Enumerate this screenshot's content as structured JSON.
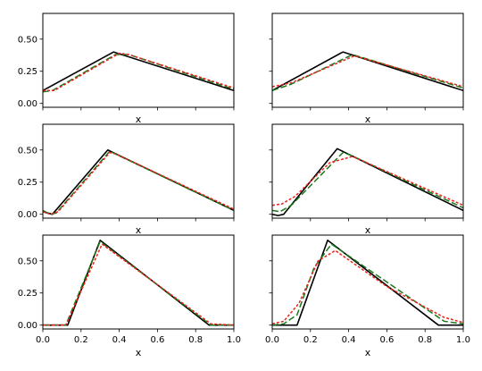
{
  "figure": {
    "background": "#ffffff"
  },
  "styles": {
    "colors": {
      "black": "#000000",
      "green": "#1a7a1a",
      "red": "#e8221c"
    }
  },
  "chart_data": [
    {
      "type": "line",
      "xlabel": "x",
      "ylabel": "",
      "xlim": [
        0,
        1
      ],
      "ylim": [
        -0.03,
        0.7
      ],
      "xticks": [],
      "yticks": [
        "0.00",
        "0.25",
        "0.50"
      ],
      "series": [
        {
          "color": "#000000",
          "style": "solid",
          "x": [
            0,
            0.37,
            1.0
          ],
          "y": [
            0.1,
            0.4,
            0.1
          ]
        },
        {
          "color": "#1a7a1a",
          "style": "dashed",
          "x": [
            0,
            0.05,
            0.38,
            0.45,
            1.0
          ],
          "y": [
            0.09,
            0.1,
            0.38,
            0.38,
            0.11
          ]
        },
        {
          "color": "#e8221c",
          "style": "dotted",
          "x": [
            0,
            0.06,
            0.4,
            0.45,
            1.0
          ],
          "y": [
            0.1,
            0.1,
            0.39,
            0.38,
            0.12
          ]
        }
      ]
    },
    {
      "type": "line",
      "xlabel": "x",
      "ylabel": "",
      "xlim": [
        0,
        1
      ],
      "ylim": [
        -0.03,
        0.7
      ],
      "xticks": [],
      "yticks": [],
      "series": [
        {
          "color": "#000000",
          "style": "solid",
          "x": [
            0,
            0.37,
            1.0
          ],
          "y": [
            0.1,
            0.4,
            0.1
          ]
        },
        {
          "color": "#1a7a1a",
          "style": "dashed",
          "x": [
            0,
            0.1,
            0.42,
            1.0
          ],
          "y": [
            0.1,
            0.15,
            0.38,
            0.12
          ]
        },
        {
          "color": "#e8221c",
          "style": "dotted",
          "x": [
            0,
            0.1,
            0.43,
            1.0
          ],
          "y": [
            0.13,
            0.16,
            0.37,
            0.13
          ]
        }
      ]
    },
    {
      "type": "line",
      "xlabel": "x",
      "ylabel": "",
      "xlim": [
        0,
        1
      ],
      "ylim": [
        -0.03,
        0.7
      ],
      "xticks": [],
      "yticks": [
        "0.00",
        "0.25",
        "0.50"
      ],
      "series": [
        {
          "color": "#000000",
          "style": "solid",
          "x": [
            0,
            0.05,
            0.34,
            1.0
          ],
          "y": [
            0.02,
            0.0,
            0.5,
            0.03
          ]
        },
        {
          "color": "#1a7a1a",
          "style": "dashed",
          "x": [
            0,
            0.04,
            0.07,
            0.35,
            1.0
          ],
          "y": [
            0.03,
            0.0,
            0.01,
            0.49,
            0.03
          ]
        },
        {
          "color": "#e8221c",
          "style": "dotted",
          "x": [
            0,
            0.04,
            0.08,
            0.35,
            0.38,
            1.0
          ],
          "y": [
            0.02,
            0.0,
            0.02,
            0.48,
            0.47,
            0.04
          ]
        }
      ]
    },
    {
      "type": "line",
      "xlabel": "x",
      "ylabel": "",
      "xlim": [
        0,
        1
      ],
      "ylim": [
        -0.03,
        0.7
      ],
      "xticks": [],
      "yticks": [],
      "series": [
        {
          "color": "#000000",
          "style": "solid",
          "x": [
            0,
            0.03,
            0.06,
            0.34,
            1.0
          ],
          "y": [
            0.0,
            -0.01,
            0.0,
            0.51,
            0.03
          ]
        },
        {
          "color": "#1a7a1a",
          "style": "dashed",
          "x": [
            0,
            0.04,
            0.1,
            0.37,
            0.41,
            1.0
          ],
          "y": [
            0.03,
            0.02,
            0.07,
            0.48,
            0.46,
            0.05
          ]
        },
        {
          "color": "#e8221c",
          "style": "dotted",
          "x": [
            0,
            0.05,
            0.12,
            0.3,
            0.42,
            1.0
          ],
          "y": [
            0.07,
            0.08,
            0.14,
            0.4,
            0.45,
            0.07
          ]
        }
      ]
    },
    {
      "type": "line",
      "xlabel": "x",
      "ylabel": "",
      "xlim": [
        0,
        1
      ],
      "ylim": [
        -0.03,
        0.7
      ],
      "xticks": [
        "0.0",
        "0.2",
        "0.4",
        "0.6",
        "0.8",
        "1.0"
      ],
      "yticks": [
        "0.00",
        "0.25",
        "0.50"
      ],
      "series": [
        {
          "color": "#000000",
          "style": "solid",
          "x": [
            0,
            0.13,
            0.3,
            0.87,
            1.0
          ],
          "y": [
            0.0,
            0.0,
            0.66,
            0.0,
            0.0
          ]
        },
        {
          "color": "#1a7a1a",
          "style": "dashed",
          "x": [
            0,
            0.12,
            0.3,
            0.88,
            1.0
          ],
          "y": [
            0.0,
            0.0,
            0.65,
            0.0,
            0.0
          ]
        },
        {
          "color": "#e8221c",
          "style": "dotted",
          "x": [
            0,
            0.12,
            0.31,
            0.88,
            1.0
          ],
          "y": [
            0.0,
            0.0,
            0.63,
            0.01,
            0.0
          ]
        }
      ]
    },
    {
      "type": "line",
      "xlabel": "x",
      "ylabel": "",
      "xlim": [
        0,
        1
      ],
      "ylim": [
        -0.03,
        0.7
      ],
      "xticks": [
        "0.0",
        "0.2",
        "0.4",
        "0.6",
        "0.8",
        "1.0"
      ],
      "yticks": [],
      "series": [
        {
          "color": "#000000",
          "style": "solid",
          "x": [
            0,
            0.13,
            0.29,
            0.87,
            1.0
          ],
          "y": [
            0.0,
            0.0,
            0.66,
            0.0,
            0.0
          ]
        },
        {
          "color": "#1a7a1a",
          "style": "dashed",
          "x": [
            0,
            0.06,
            0.13,
            0.22,
            0.31,
            0.9,
            1.0
          ],
          "y": [
            0.0,
            0.01,
            0.08,
            0.45,
            0.63,
            0.03,
            0.01
          ]
        },
        {
          "color": "#e8221c",
          "style": "dotted",
          "x": [
            0,
            0.06,
            0.14,
            0.24,
            0.33,
            0.6,
            0.9,
            1.0
          ],
          "y": [
            0.01,
            0.03,
            0.17,
            0.5,
            0.58,
            0.3,
            0.06,
            0.02
          ]
        }
      ]
    }
  ]
}
